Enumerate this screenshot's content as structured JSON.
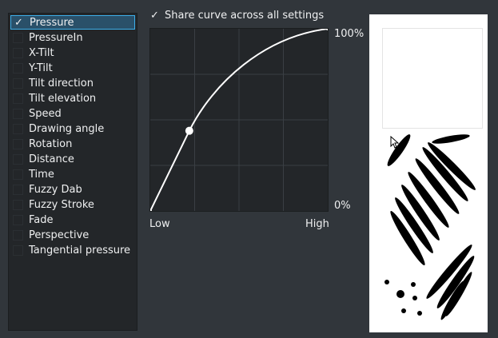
{
  "sensors": [
    {
      "label": "Pressure",
      "checked": true,
      "selected": true
    },
    {
      "label": "PressureIn",
      "checked": false
    },
    {
      "label": "X-Tilt",
      "checked": false
    },
    {
      "label": "Y-Tilt",
      "checked": false
    },
    {
      "label": "Tilt direction",
      "checked": false
    },
    {
      "label": "Tilt elevation",
      "checked": false
    },
    {
      "label": "Speed",
      "checked": false
    },
    {
      "label": "Drawing angle",
      "checked": false
    },
    {
      "label": "Rotation",
      "checked": false
    },
    {
      "label": "Distance",
      "checked": false
    },
    {
      "label": "Time",
      "checked": false
    },
    {
      "label": "Fuzzy Dab",
      "checked": false
    },
    {
      "label": "Fuzzy Stroke",
      "checked": false
    },
    {
      "label": "Fade",
      "checked": false
    },
    {
      "label": "Perspective",
      "checked": false
    },
    {
      "label": "Tangential pressure",
      "checked": false
    }
  ],
  "share_curve": {
    "label": "Share curve across all settings",
    "checked": true,
    "check_glyph": "✓"
  },
  "curve": {
    "y_max_label": "100%",
    "y_min_label": "0%",
    "x_min_label": "Low",
    "x_max_label": "High",
    "control_points": [
      [
        0,
        0
      ],
      [
        0.22,
        0.44
      ],
      [
        1,
        1
      ]
    ]
  },
  "colors": {
    "selection": "#2a5069",
    "accent": "#3daee9",
    "panel_bg": "#232629",
    "window_bg": "#31363b"
  }
}
